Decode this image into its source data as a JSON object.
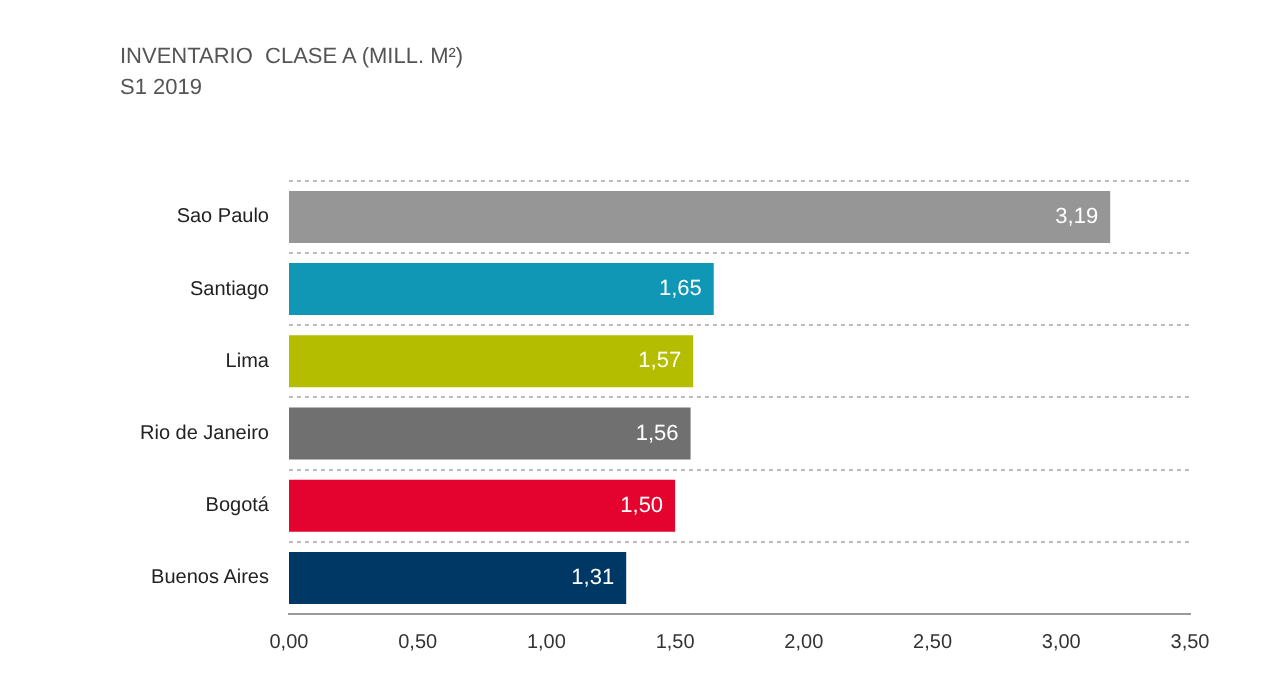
{
  "chart_data": {
    "type": "bar",
    "orientation": "horizontal",
    "title": "INVENTARIO  CLASE A (MILL. M²)",
    "subtitle": "S1 2019",
    "categories": [
      "Sao Paulo",
      "Santiago",
      "Lima",
      "Rio de Janeiro",
      "Bogotá",
      "Buenos Aires"
    ],
    "values": [
      3.19,
      1.65,
      1.57,
      1.56,
      1.5,
      1.31
    ],
    "colors": [
      "#969696",
      "#0f97b5",
      "#b5bd00",
      "#707070",
      "#e4032e",
      "#003865"
    ],
    "value_labels": [
      "3,19",
      "1,65",
      "1,57",
      "1,56",
      "1,50",
      "1,31"
    ],
    "xlim": [
      0,
      3.5
    ],
    "xticks": [
      {
        "value": 0,
        "label": "0,00"
      },
      {
        "value": 0.5,
        "label": "0,50"
      },
      {
        "value": 1,
        "label": "1,00"
      },
      {
        "value": 1.5,
        "label": "1,50"
      },
      {
        "value": 2,
        "label": "2,00"
      },
      {
        "value": 2.5,
        "label": "2,50"
      },
      {
        "value": 3,
        "label": "3,00"
      },
      {
        "value": 3.5,
        "label": "3,50"
      }
    ],
    "grid": "y",
    "legend": false
  }
}
